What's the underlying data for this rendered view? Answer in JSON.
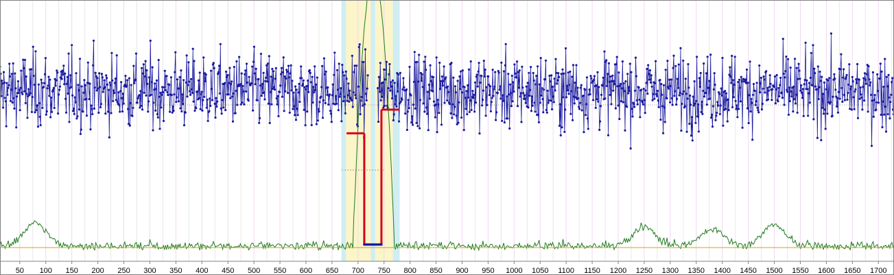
{
  "chart_data": {
    "type": "line",
    "title": "",
    "xlabel": "",
    "ylabel": "",
    "xlim": [
      12,
      1730
    ],
    "x_ticks": [
      50,
      100,
      150,
      200,
      250,
      300,
      350,
      400,
      450,
      500,
      550,
      600,
      650,
      700,
      750,
      800,
      850,
      900,
      950,
      1000,
      1050,
      1100,
      1150,
      1200,
      1250,
      1300,
      1350,
      1400,
      1450,
      1500,
      1550,
      1600,
      1650,
      1700
    ],
    "x_tick_labels": [
      "50",
      "100",
      "150",
      "200",
      "250",
      "300",
      "350",
      "400",
      "450",
      "500",
      "550",
      "600",
      "650",
      "700",
      "750",
      "800",
      "850",
      "900",
      "950",
      "1000",
      "1050",
      "1100",
      "1150",
      "1200",
      "1250",
      "1300",
      "1350",
      "1400",
      "1450",
      "1500",
      "1550",
      "1600",
      "1650",
      "1700"
    ],
    "grid": true,
    "legend": "none",
    "highlight_bands": [
      {
        "x0": 668,
        "x1": 677,
        "color": "#cdeef5"
      },
      {
        "x0": 677,
        "x1": 725,
        "color": "#fbf5c9"
      },
      {
        "x0": 725,
        "x1": 733,
        "color": "#cdeef5"
      },
      {
        "x0": 733,
        "x1": 767,
        "color": "#fbf5c9"
      },
      {
        "x0": 767,
        "x1": 780,
        "color": "#cdeef5"
      }
    ],
    "signal": {
      "color": "#1a1aa0",
      "baseline": 0.55,
      "sd": 0.18,
      "sample_step": 1.2,
      "range": [
        0,
        1
      ],
      "gap": [
        720,
        738
      ]
    },
    "segments": {
      "color": "#d4001a",
      "levels": [
        {
          "x0": 678,
          "x1": 712,
          "y": 0.48
        },
        {
          "x0": 712,
          "x1": 745,
          "y": 0.01
        },
        {
          "x0": 745,
          "x1": 780,
          "y": 0.58
        }
      ]
    },
    "coverage": {
      "color": "#1f7a1f",
      "baseline_color": "#d6a400",
      "baseline": 0.0,
      "peaks": [
        {
          "x": 80,
          "y": 0.34
        },
        {
          "x": 1250,
          "y": 0.28
        },
        {
          "x": 1380,
          "y": 0.25
        },
        {
          "x": 1500,
          "y": 0.32
        }
      ],
      "spike": {
        "x0": 690,
        "x1": 770,
        "max": 2.0
      }
    },
    "marker_line_y": 0.0
  }
}
